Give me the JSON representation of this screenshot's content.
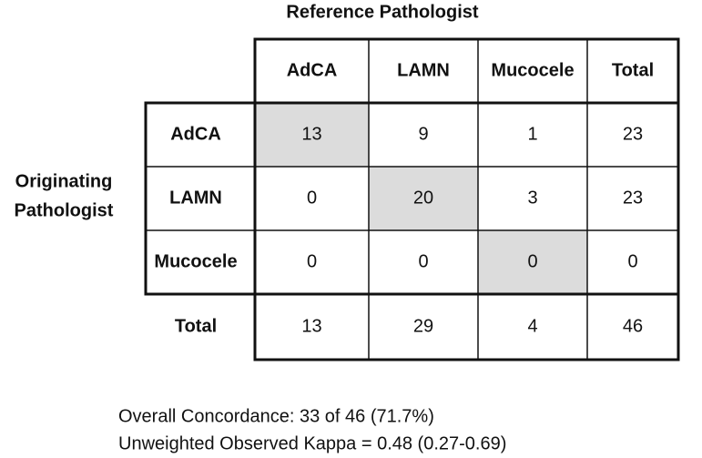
{
  "header": {
    "title": "Reference Pathologist",
    "row_axis_label": [
      "Originating",
      "Pathologist"
    ]
  },
  "table": {
    "columns": [
      "AdCA",
      "LAMN",
      "Mucocele",
      "Total"
    ],
    "rows": [
      {
        "label": "AdCA",
        "cells": [
          13,
          9,
          1,
          23
        ]
      },
      {
        "label": "LAMN",
        "cells": [
          0,
          20,
          3,
          23
        ]
      },
      {
        "label": "Mucocele",
        "cells": [
          0,
          0,
          0,
          0
        ]
      },
      {
        "label": "Total",
        "cells": [
          13,
          29,
          4,
          46
        ]
      }
    ]
  },
  "footer": [
    "Overall Concordance: 33 of 46 (71.7%)",
    "Unweighted Observed Kappa = 0.48 (0.27-0.69)"
  ]
}
